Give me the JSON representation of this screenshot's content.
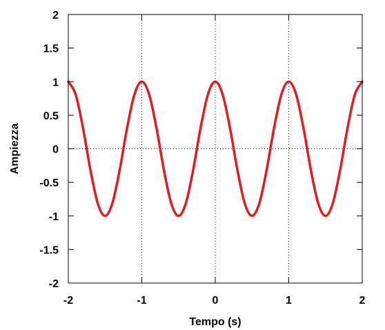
{
  "chart_data": {
    "type": "line",
    "title": "",
    "xlabel": "Tempo (s)",
    "ylabel": "Ampiezza",
    "xlim": [
      -2,
      2
    ],
    "ylim": [
      -2,
      2
    ],
    "xticks": [
      -2,
      -1,
      0,
      1,
      2
    ],
    "xtick_labels": [
      "-2",
      "-1",
      "0",
      "1",
      "2"
    ],
    "yticks": [
      -2,
      -1.5,
      -1,
      -0.5,
      0,
      0.5,
      1,
      1.5,
      2
    ],
    "ytick_labels": [
      "-2",
      "-1.5",
      "-1",
      "-0.5",
      "0",
      "0.5",
      "1",
      "1.5",
      "2"
    ],
    "grid": "dotted lines at x = -1, 0, 1 and y = 0",
    "series": [
      {
        "color": "#e41a1c",
        "x": [
          -2.0,
          -1.9,
          -1.8,
          -1.7,
          -1.6,
          -1.5,
          -1.4,
          -1.3,
          -1.2,
          -1.1,
          -1.0,
          -0.9,
          -0.8,
          -0.7,
          -0.6,
          -0.5,
          -0.4,
          -0.3,
          -0.2,
          -0.1,
          0.0,
          0.1,
          0.2,
          0.3,
          0.4,
          0.5,
          0.6,
          0.7,
          0.8,
          0.9,
          1.0,
          1.1,
          1.2,
          1.3,
          1.4,
          1.5,
          1.6,
          1.7,
          1.8,
          1.9,
          2.0
        ],
        "y": [
          1.0,
          0.81,
          0.31,
          -0.31,
          -0.81,
          -1.0,
          -0.81,
          -0.31,
          0.31,
          0.81,
          1.0,
          0.81,
          0.31,
          -0.31,
          -0.81,
          -1.0,
          -0.81,
          -0.31,
          0.31,
          0.81,
          1.0,
          0.81,
          0.31,
          -0.31,
          -0.81,
          -1.0,
          -0.81,
          -0.31,
          0.31,
          0.81,
          1.0,
          0.81,
          0.31,
          -0.31,
          -0.81,
          -1.0,
          -0.81,
          -0.31,
          0.31,
          0.81,
          1.0
        ]
      }
    ]
  }
}
